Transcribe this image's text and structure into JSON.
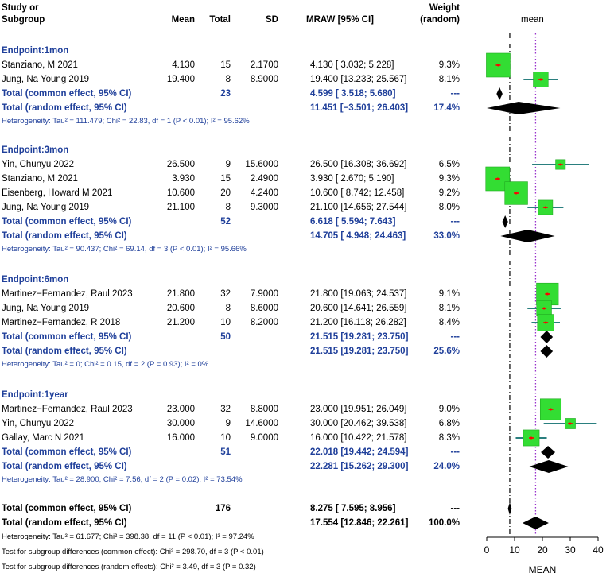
{
  "headers": {
    "study_line1": "Study or",
    "study_line2": "Subgroup",
    "mean": "Mean",
    "total": "Total",
    "sd": "SD",
    "mraw": "MRAW [95% CI]",
    "weight_line1": "Weight",
    "weight_line2": "(random)",
    "plot_title": "mean"
  },
  "groups": [
    {
      "title": "Endpoint:1mon",
      "studies": [
        {
          "name": "Stanziano, M 2021",
          "mean": "4.130",
          "total": "15",
          "sd": "2.1700",
          "ci": "4.130 [ 3.032;  5.228]",
          "weight": "9.3%"
        },
        {
          "name": "Jung, Na Young 2019",
          "mean": "19.400",
          "total": "8",
          "sd": "8.9000",
          "ci": "19.400 [13.233; 25.567]",
          "weight": "8.1%"
        }
      ],
      "common": {
        "label": "Total (common effect, 95% CI)",
        "total": "23",
        "ci": "4.599 [ 3.518;  5.680]",
        "weight": "---"
      },
      "random": {
        "label": "Total (random effect, 95% CI)",
        "ci": "11.451 [−3.501; 26.403]",
        "weight": "17.4%"
      },
      "het": "Heterogeneity: Tau² = 111.479; Chi² = 22.83, df = 1 (P < 0.01); I² = 95.62%"
    },
    {
      "title": "Endpoint:3mon",
      "studies": [
        {
          "name": "Yin, Chunyu 2022",
          "mean": "26.500",
          "total": "9",
          "sd": "15.6000",
          "ci": "26.500 [16.308; 36.692]",
          "weight": "6.5%"
        },
        {
          "name": "Stanziano, M 2021",
          "mean": "3.930",
          "total": "15",
          "sd": "2.4900",
          "ci": "3.930 [ 2.670;  5.190]",
          "weight": "9.3%"
        },
        {
          "name": "Eisenberg, Howard M 2021",
          "mean": "10.600",
          "total": "20",
          "sd": "4.2400",
          "ci": "10.600 [ 8.742; 12.458]",
          "weight": "9.2%"
        },
        {
          "name": "Jung, Na Young 2019",
          "mean": "21.100",
          "total": "8",
          "sd": "9.3000",
          "ci": "21.100 [14.656; 27.544]",
          "weight": "8.0%"
        }
      ],
      "common": {
        "label": "Total (common effect, 95% CI)",
        "total": "52",
        "ci": "6.618 [ 5.594;  7.643]",
        "weight": "---"
      },
      "random": {
        "label": "Total (random effect, 95% CI)",
        "ci": "14.705 [ 4.948; 24.463]",
        "weight": "33.0%"
      },
      "het": "Heterogeneity: Tau² = 90.437; Chi² = 69.14, df = 3 (P < 0.01); I² = 95.66%"
    },
    {
      "title": "Endpoint:6mon",
      "studies": [
        {
          "name": "Martinez−Fernandez, Raul 2023",
          "mean": "21.800",
          "total": "32",
          "sd": "7.9000",
          "ci": "21.800 [19.063; 24.537]",
          "weight": "9.1%"
        },
        {
          "name": "Jung, Na Young 2019",
          "mean": "20.600",
          "total": "8",
          "sd": "8.6000",
          "ci": "20.600 [14.641; 26.559]",
          "weight": "8.1%"
        },
        {
          "name": "Martinez−Fernandez, R 2018",
          "mean": "21.200",
          "total": "10",
          "sd": "8.2000",
          "ci": "21.200 [16.118; 26.282]",
          "weight": "8.4%"
        }
      ],
      "common": {
        "label": "Total (common effect, 95% CI)",
        "total": "50",
        "ci": "21.515 [19.281; 23.750]",
        "weight": "---"
      },
      "random": {
        "label": "Total (random effect, 95% CI)",
        "ci": "21.515 [19.281; 23.750]",
        "weight": "25.6%"
      },
      "het": "Heterogeneity: Tau² = 0; Chi² = 0.15, df = 2 (P = 0.93); I² = 0%"
    },
    {
      "title": "Endpoint:1year",
      "studies": [
        {
          "name": "Martinez−Fernandez, Raul 2023",
          "mean": "23.000",
          "total": "32",
          "sd": "8.8000",
          "ci": "23.000 [19.951; 26.049]",
          "weight": "9.0%"
        },
        {
          "name": "Yin, Chunyu 2022",
          "mean": "30.000",
          "total": "9",
          "sd": "14.6000",
          "ci": "30.000 [20.462; 39.538]",
          "weight": "6.8%"
        },
        {
          "name": "Gallay, Marc N 2021",
          "mean": "16.000",
          "total": "10",
          "sd": "9.0000",
          "ci": "16.000 [10.422; 21.578]",
          "weight": "8.3%"
        }
      ],
      "common": {
        "label": "Total (common effect, 95% CI)",
        "total": "51",
        "ci": "22.018 [19.442; 24.594]",
        "weight": "---"
      },
      "random": {
        "label": "Total (random effect, 95% CI)",
        "ci": "22.281 [15.262; 29.300]",
        "weight": "24.0%"
      },
      "het": "Heterogeneity: Tau² = 28.900; Chi² = 7.56, df = 2 (P = 0.02); I² = 73.54%"
    }
  ],
  "overall": {
    "common": {
      "label": "Total (common effect, 95% CI)",
      "total": "176",
      "ci": "8.275 [ 7.595;  8.956]",
      "weight": "---"
    },
    "random": {
      "label": "Total (random effect, 95% CI)",
      "ci": "17.554 [12.846; 22.261]",
      "weight": "100.0%"
    },
    "het": "Heterogeneity: Tau² = 61.677; Chi² = 398.38, df = 11 (P < 0.01); I² = 97.24%",
    "test_common": "Test for subgroup differences (common effect): Chi² = 298.70, df = 3 (P < 0.01)",
    "test_random": "Test for subgroup differences (random effects): Chi² = 3.49, df = 3 (P = 0.32)"
  },
  "chart_data": {
    "type": "forest",
    "title": "mean",
    "xlabel": "MEAN",
    "xlim": [
      0,
      40
    ],
    "xticks": [
      "0",
      "10",
      "20",
      "30",
      "40"
    ],
    "reference_lines": {
      "common_effect": 8.275,
      "random_effect": 17.554
    },
    "colors": {
      "box": "#33dd33",
      "ci_line": "#2a7f7f",
      "point": "#ff0000",
      "diamond": "#000000",
      "random_line": "#9933cc",
      "text_blue": "#1f3f9a"
    },
    "studies": [
      {
        "group": 0,
        "est": 4.13,
        "lo": 3.032,
        "hi": 5.228,
        "w": 9.3
      },
      {
        "group": 0,
        "est": 19.4,
        "lo": 13.233,
        "hi": 25.567,
        "w": 8.1
      },
      {
        "group": 1,
        "est": 26.5,
        "lo": 16.308,
        "hi": 36.692,
        "w": 6.5
      },
      {
        "group": 1,
        "est": 3.93,
        "lo": 2.67,
        "hi": 5.19,
        "w": 9.3
      },
      {
        "group": 1,
        "est": 10.6,
        "lo": 8.742,
        "hi": 12.458,
        "w": 9.2
      },
      {
        "group": 1,
        "est": 21.1,
        "lo": 14.656,
        "hi": 27.544,
        "w": 8.0
      },
      {
        "group": 2,
        "est": 21.8,
        "lo": 19.063,
        "hi": 24.537,
        "w": 9.1
      },
      {
        "group": 2,
        "est": 20.6,
        "lo": 14.641,
        "hi": 26.559,
        "w": 8.1
      },
      {
        "group": 2,
        "est": 21.2,
        "lo": 16.118,
        "hi": 26.282,
        "w": 8.4
      },
      {
        "group": 3,
        "est": 23.0,
        "lo": 19.951,
        "hi": 26.049,
        "w": 9.0
      },
      {
        "group": 3,
        "est": 30.0,
        "lo": 20.462,
        "hi": 39.538,
        "w": 6.8
      },
      {
        "group": 3,
        "est": 16.0,
        "lo": 10.422,
        "hi": 21.578,
        "w": 8.3
      }
    ],
    "summaries": [
      {
        "group": 0,
        "kind": "common",
        "est": 4.599,
        "lo": 3.518,
        "hi": 5.68
      },
      {
        "group": 0,
        "kind": "random",
        "est": 11.451,
        "lo": -3.501,
        "hi": 26.403
      },
      {
        "group": 1,
        "kind": "common",
        "est": 6.618,
        "lo": 5.594,
        "hi": 7.643
      },
      {
        "group": 1,
        "kind": "random",
        "est": 14.705,
        "lo": 4.948,
        "hi": 24.463
      },
      {
        "group": 2,
        "kind": "common",
        "est": 21.515,
        "lo": 19.281,
        "hi": 23.75
      },
      {
        "group": 2,
        "kind": "random",
        "est": 21.515,
        "lo": 19.281,
        "hi": 23.75
      },
      {
        "group": 3,
        "kind": "common",
        "est": 22.018,
        "lo": 19.442,
        "hi": 24.594
      },
      {
        "group": 3,
        "kind": "random",
        "est": 22.281,
        "lo": 15.262,
        "hi": 29.3
      },
      {
        "group": "overall",
        "kind": "common",
        "est": 8.275,
        "lo": 7.595,
        "hi": 8.956
      },
      {
        "group": "overall",
        "kind": "random",
        "est": 17.554,
        "lo": 12.846,
        "hi": 22.261
      }
    ]
  }
}
